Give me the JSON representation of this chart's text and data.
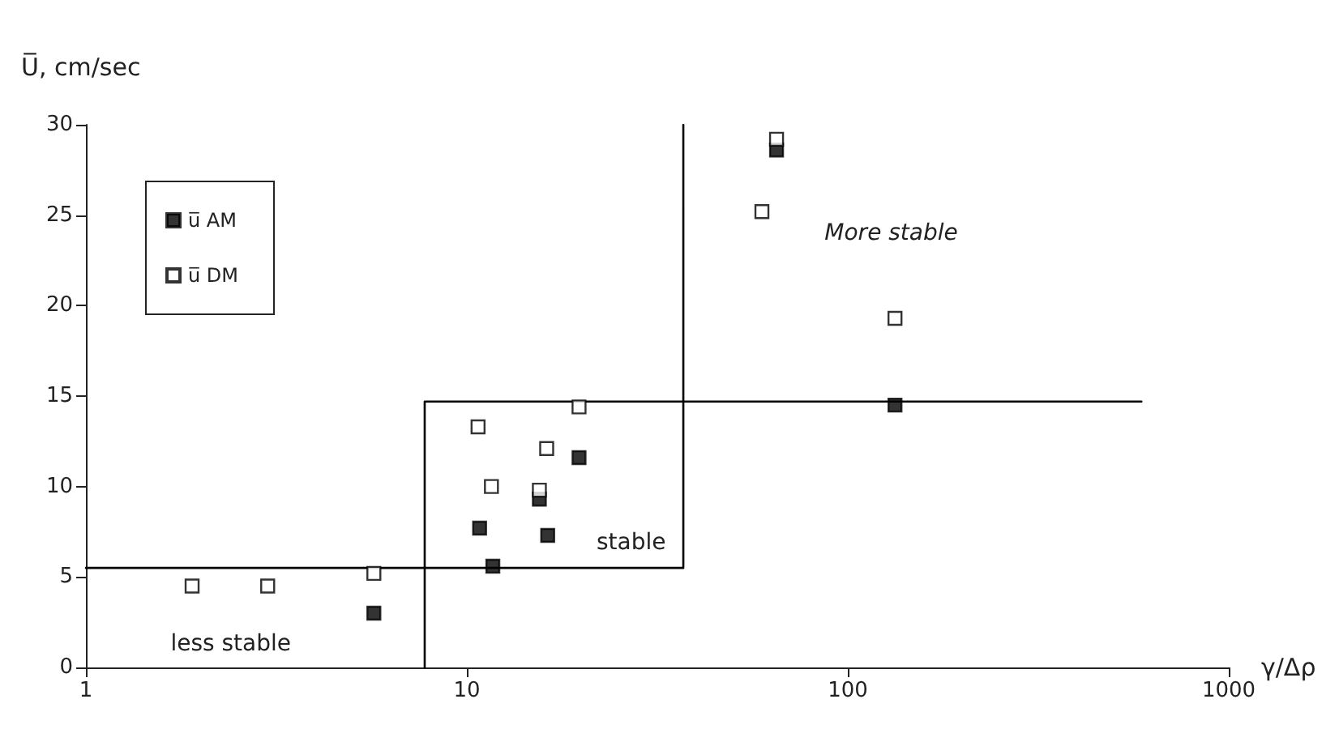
{
  "chart_data": {
    "type": "scatter",
    "ylabel": "U̅, cm/sec",
    "xlabel": "γ/Δρ",
    "log": "x",
    "xlim": [
      1,
      1000
    ],
    "xticks": [
      1,
      10,
      100,
      1000
    ],
    "ylim": [
      0,
      30
    ],
    "yticks": [
      0,
      5,
      10,
      15,
      20,
      25,
      30
    ],
    "grid": false,
    "legend": "top left",
    "marker": "square",
    "series": [
      {
        "name": "u̅ AM",
        "color": "#000000",
        "x": [
          5.7,
          10.8,
          11.7,
          15.5,
          16.3,
          19.7,
          65,
          133
        ],
        "values": [
          3.0,
          7.7,
          5.6,
          9.3,
          7.3,
          11.6,
          28.6,
          14.5
        ]
      },
      {
        "name": "u̅ DM",
        "color": "#ffffff",
        "x": [
          1.9,
          3.0,
          5.7,
          10.7,
          11.6,
          15.5,
          16.2,
          19.7,
          59.5,
          65,
          133
        ],
        "values": [
          4.5,
          4.5,
          5.2,
          13.3,
          10.0,
          9.8,
          12.1,
          14.4,
          25.2,
          29.2,
          19.3
        ]
      },
      {
        "type": "line",
        "color": "#000000",
        "marker": "none",
        "x": [
          1,
          37,
          37
        ],
        "values": [
          5.5,
          5.5,
          30
        ]
      },
      {
        "type": "line",
        "color": "#000000",
        "marker": "none",
        "x": [
          7.75,
          7.75,
          590
        ],
        "values": [
          0,
          14.7,
          14.7
        ]
      }
    ],
    "annotations": [
      "More stable",
      "stable",
      "less stable"
    ]
  }
}
